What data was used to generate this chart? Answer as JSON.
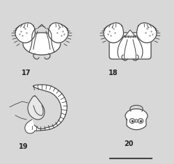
{
  "bg_color": "#d8d8d8",
  "line_color": "#444444",
  "dark_color": "#222222",
  "fill_color": "#cccccc",
  "label_17": "17",
  "label_18": "18",
  "label_19": "19",
  "label_20": "20",
  "label_fontsize": 7,
  "fig_width": 2.5,
  "fig_height": 2.36,
  "dpi": 100,
  "scalebar_color": "#444444"
}
